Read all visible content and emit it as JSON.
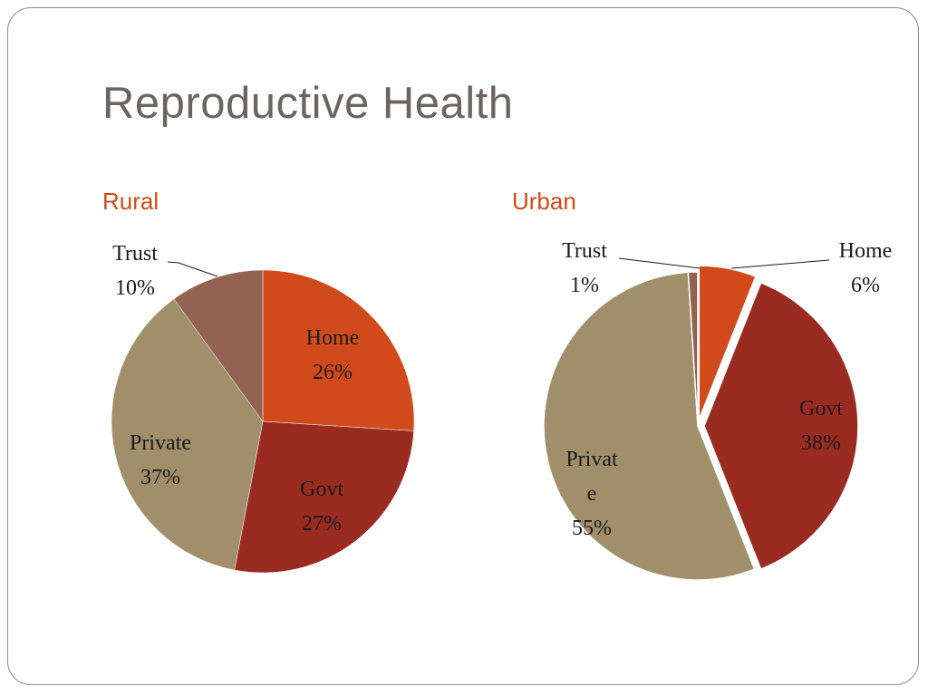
{
  "slide": {
    "title": "Reproductive Health"
  },
  "chart_data": [
    {
      "type": "pie",
      "title": "Rural",
      "categories": [
        "Home",
        "Govt",
        "Private",
        "Trust"
      ],
      "values": [
        26,
        27,
        37,
        10
      ],
      "labels": [
        [
          "Home",
          "26%"
        ],
        [
          "Govt",
          "27%"
        ],
        [
          "Private",
          "37%"
        ],
        [
          "Trust",
          "10%"
        ]
      ],
      "colors": [
        "#d14a1b",
        "#9a2b20",
        "#a18f6c",
        "#946250"
      ]
    },
    {
      "type": "pie",
      "title": "Urban",
      "categories": [
        "Home",
        "Govt",
        "Private",
        "Trust"
      ],
      "values": [
        6,
        38,
        55,
        1
      ],
      "labels": [
        [
          "Home",
          "6%"
        ],
        [
          "Govt",
          "38%"
        ],
        [
          "Privat",
          "e",
          "55%"
        ],
        [
          "Trust",
          "1%"
        ]
      ],
      "colors": [
        "#d14a1b",
        "#9a2b20",
        "#a18f6c",
        "#946250"
      ]
    }
  ]
}
